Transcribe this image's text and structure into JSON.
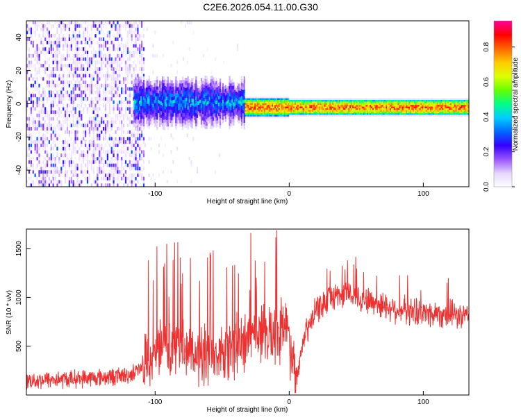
{
  "title": "C2E6.2026.054.11.00.G30",
  "chart_data": [
    {
      "type": "heatmap",
      "name": "spectrogram",
      "xlabel": "Height of straight line (km)",
      "ylabel": "Frequency (Hz)",
      "xlim": [
        -196,
        134
      ],
      "ylim": [
        -50,
        50
      ],
      "xticks": [
        -100,
        0,
        100
      ],
      "xtick_labels": [
        "-100",
        "0",
        "100"
      ],
      "yticks": [
        -40,
        -20,
        0,
        20,
        40
      ],
      "ytick_labels": [
        "-40",
        "-20",
        "0",
        "20",
        "40"
      ],
      "colorbar": {
        "label": "Normalized spectral amplitude",
        "range": [
          0,
          0.95
        ],
        "ticks": [
          0.0,
          0.2,
          0.4,
          0.6,
          0.8
        ],
        "tick_labels": [
          "0.0",
          "0.2",
          "0.4",
          "0.6",
          "0.8"
        ],
        "colormap": [
          "#ffffff",
          "#e6d6ff",
          "#9955ff",
          "#3300ff",
          "#0066ff",
          "#00ccff",
          "#00ff88",
          "#66ff00",
          "#ddff00",
          "#ffcc00",
          "#ff6600",
          "#ff0000",
          "#ff0099"
        ]
      },
      "regions": [
        {
          "name": "broadband noise",
          "x_range": [
            -196,
            -108
          ],
          "freq_range": [
            -50,
            50
          ],
          "amplitude": 0.1
        },
        {
          "name": "scattered weak noise",
          "x_range": [
            -108,
            -28
          ],
          "freq_range": [
            -50,
            50
          ],
          "amplitude": 0.03
        },
        {
          "name": "broad signal band",
          "x_range": [
            -116,
            -33
          ],
          "freq_center": 0,
          "freq_width": 12,
          "amplitude": 0.35
        },
        {
          "name": "narrow signal line",
          "x_range": [
            -33,
            134
          ],
          "freq_center": -2,
          "freq_width": 4,
          "amplitude": 0.85
        }
      ]
    },
    {
      "type": "line",
      "name": "snr",
      "xlabel": "Height of straight line (km)",
      "ylabel": "SNR (10 * v/v)",
      "xlim": [
        -196,
        134
      ],
      "ylim": [
        0,
        1700
      ],
      "xticks": [
        -100,
        0,
        100
      ],
      "xtick_labels": [
        "-100",
        "0",
        "100"
      ],
      "yticks": [
        500,
        1000,
        1500
      ],
      "ytick_labels": [
        "500",
        "1000",
        "1500"
      ],
      "series": [
        {
          "name": "SNR",
          "color": "#ee3030",
          "x": [
            -196,
            -170,
            -140,
            -120,
            -110,
            -100,
            -85,
            -70,
            -55,
            -40,
            -30,
            -20,
            -10,
            -2,
            6,
            10,
            20,
            30,
            40,
            50,
            60,
            80,
            100,
            120,
            134
          ],
          "values": [
            150,
            160,
            180,
            200,
            270,
            420,
            480,
            430,
            420,
            470,
            560,
            600,
            640,
            720,
            200,
            560,
            860,
            1000,
            1040,
            1020,
            960,
            880,
            840,
            830,
            790
          ]
        }
      ]
    }
  ]
}
